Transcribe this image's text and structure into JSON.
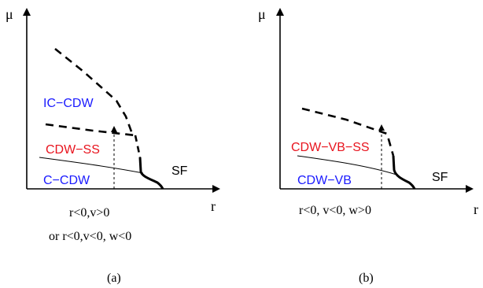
{
  "colors": {
    "blue": "#1a1aff",
    "red": "#e8141e",
    "black": "#000000"
  },
  "panel_a": {
    "y_axis_label": "μ",
    "x_axis_label": "r",
    "region_ic_cdw": "IC−CDW",
    "region_cdw_ss": "CDW−SS",
    "region_c_cdw": "C−CDW",
    "region_sf": "SF",
    "condition_line1": "r<0,v>0",
    "condition_line2": "or  r<0,v<0, w<0",
    "caption": "(a)"
  },
  "panel_b": {
    "y_axis_label": "μ",
    "x_axis_label": "r",
    "region_cdw_vb_ss": "CDW−VB−SS",
    "region_cdw_vb": "CDW−VB",
    "region_sf": "SF",
    "condition_line1": "r<0, v<0, w>0",
    "caption": "(b)"
  }
}
